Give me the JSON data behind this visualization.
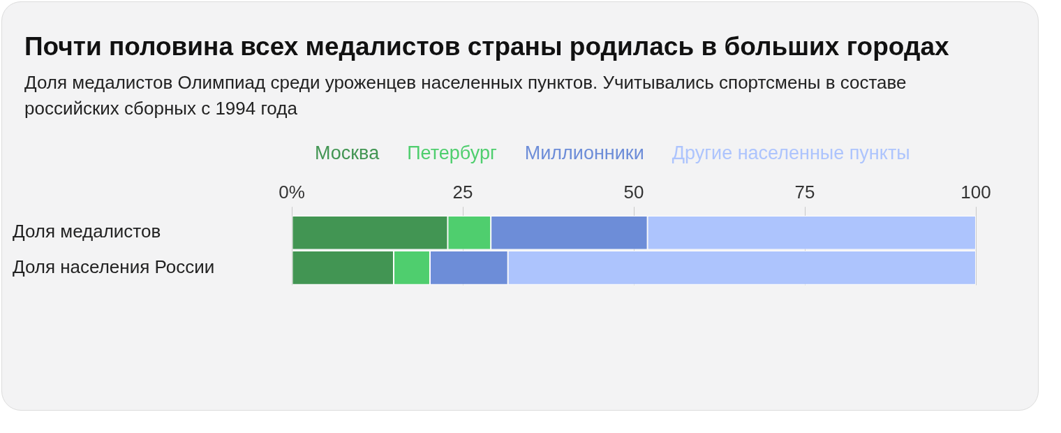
{
  "chart_data": {
    "type": "bar",
    "title": "Почти половина всех медалистов страны родилась в больших городах",
    "subtitle": "Доля медалистов Олимпиад среди уроженцев населенных пунктов. Учитывались спортсмены в составе российских сборных с 1994 года",
    "orientation": "horizontal",
    "stacked": true,
    "categories": [
      "Доля медалистов",
      "Доля населения России"
    ],
    "series": [
      {
        "name": "Москва",
        "color": "#429553",
        "values": [
          22.8,
          14.9
        ]
      },
      {
        "name": "Петербург",
        "color": "#4fce6e",
        "values": [
          6.3,
          5.3
        ]
      },
      {
        "name": "Миллионники",
        "color": "#6d8dd8",
        "values": [
          22.9,
          11.4
        ]
      },
      {
        "name": "Другие населенные пункты",
        "color": "#adc4fd",
        "values": [
          48,
          68.4
        ]
      }
    ],
    "xlim": [
      0,
      100
    ],
    "xticks": [
      {
        "value": 0,
        "label": "0%"
      },
      25,
      50,
      75,
      100
    ],
    "grid": "x",
    "legend": "top"
  }
}
